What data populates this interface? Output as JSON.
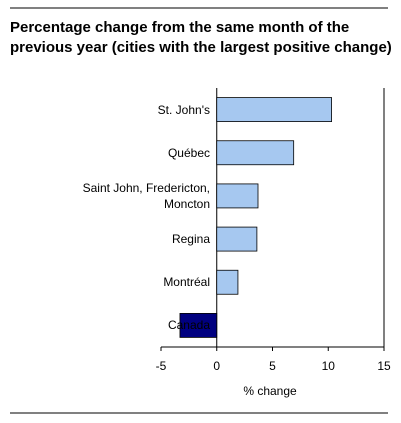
{
  "chart_data": {
    "type": "barh",
    "title": "Percentage change from the same month of the previous year (cities with the largest positive change)",
    "categories": [
      "St. John's",
      "Québec",
      "Saint John, Fredericton, Moncton",
      "Regina",
      "Montréal",
      "Canada"
    ],
    "values": [
      10.3,
      6.9,
      3.7,
      3.6,
      1.9,
      -3.3
    ],
    "colors": [
      "#a6c8f0",
      "#a6c8f0",
      "#a6c8f0",
      "#a6c8f0",
      "#a6c8f0",
      "#000080"
    ],
    "xlim": [
      -5,
      15
    ],
    "xticks": [
      -5,
      0,
      5,
      10,
      15
    ],
    "xlabel": "% change"
  }
}
